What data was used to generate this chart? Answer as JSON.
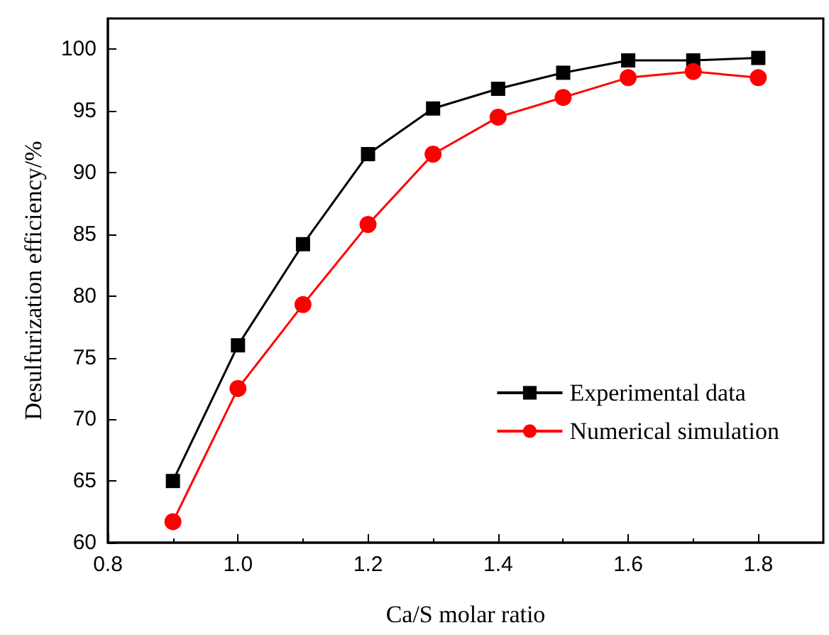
{
  "chart_data": {
    "type": "line",
    "xlabel": "Ca/S molar ratio",
    "ylabel": "Desulfurization efficiency/%",
    "x": [
      0.9,
      1.0,
      1.1,
      1.2,
      1.3,
      1.4,
      1.5,
      1.6,
      1.7,
      1.8
    ],
    "series": [
      {
        "name": "Experimental data",
        "color": "#000000",
        "marker": "square",
        "values": [
          65,
          76,
          84.2,
          91.5,
          95.2,
          96.8,
          98.1,
          99.1,
          99.1,
          99.3
        ]
      },
      {
        "name": "Numerical simulation",
        "color": "#ff0000",
        "marker": "circle",
        "values": [
          61.7,
          72.5,
          79.3,
          85.8,
          91.5,
          94.5,
          96.1,
          97.7,
          98.2,
          97.7
        ]
      }
    ],
    "xlim": [
      0.8,
      1.9
    ],
    "xticks": [
      0.8,
      {
        "value": 1,
        "label": "1.0"
      },
      1.2,
      1.4,
      1.6,
      1.8
    ],
    "ylim": [
      60,
      102.5
    ],
    "yticks": [
      60,
      65,
      70,
      75,
      80,
      85,
      90,
      95,
      100
    ],
    "grid": false,
    "legend": "bottom right",
    "line_style": "solid"
  }
}
